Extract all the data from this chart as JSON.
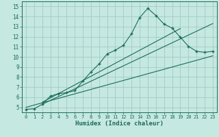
{
  "xlabel": "Humidex (Indice chaleur)",
  "xlim": [
    -0.5,
    23.5
  ],
  "ylim": [
    4.5,
    15.5
  ],
  "xticks": [
    0,
    1,
    2,
    3,
    4,
    5,
    6,
    7,
    8,
    9,
    10,
    11,
    12,
    13,
    14,
    15,
    16,
    17,
    18,
    19,
    20,
    21,
    22,
    23
  ],
  "yticks": [
    5,
    6,
    7,
    8,
    9,
    10,
    11,
    12,
    13,
    14,
    15
  ],
  "bg_color": "#c5e8e0",
  "grid_color": "#a0ccc4",
  "line_color": "#1a6b5a",
  "main_data_x": [
    0,
    1,
    2,
    3,
    4,
    5,
    6,
    7,
    8,
    9,
    10,
    11,
    12,
    13,
    14,
    15,
    16,
    17,
    18,
    19,
    20,
    21,
    22,
    23
  ],
  "main_data_y": [
    4.8,
    4.85,
    5.3,
    6.1,
    6.35,
    6.45,
    6.65,
    7.6,
    8.5,
    9.3,
    10.3,
    10.65,
    11.15,
    12.3,
    13.9,
    14.8,
    14.1,
    13.25,
    12.85,
    11.95,
    11.05,
    10.55,
    10.45,
    10.55
  ],
  "trend1_x": [
    0,
    23
  ],
  "trend1_y": [
    5.0,
    10.1
  ],
  "trend2_x": [
    2,
    19
  ],
  "trend2_y": [
    5.5,
    12.8
  ],
  "trend3_x": [
    2,
    23
  ],
  "trend3_y": [
    5.3,
    13.3
  ]
}
